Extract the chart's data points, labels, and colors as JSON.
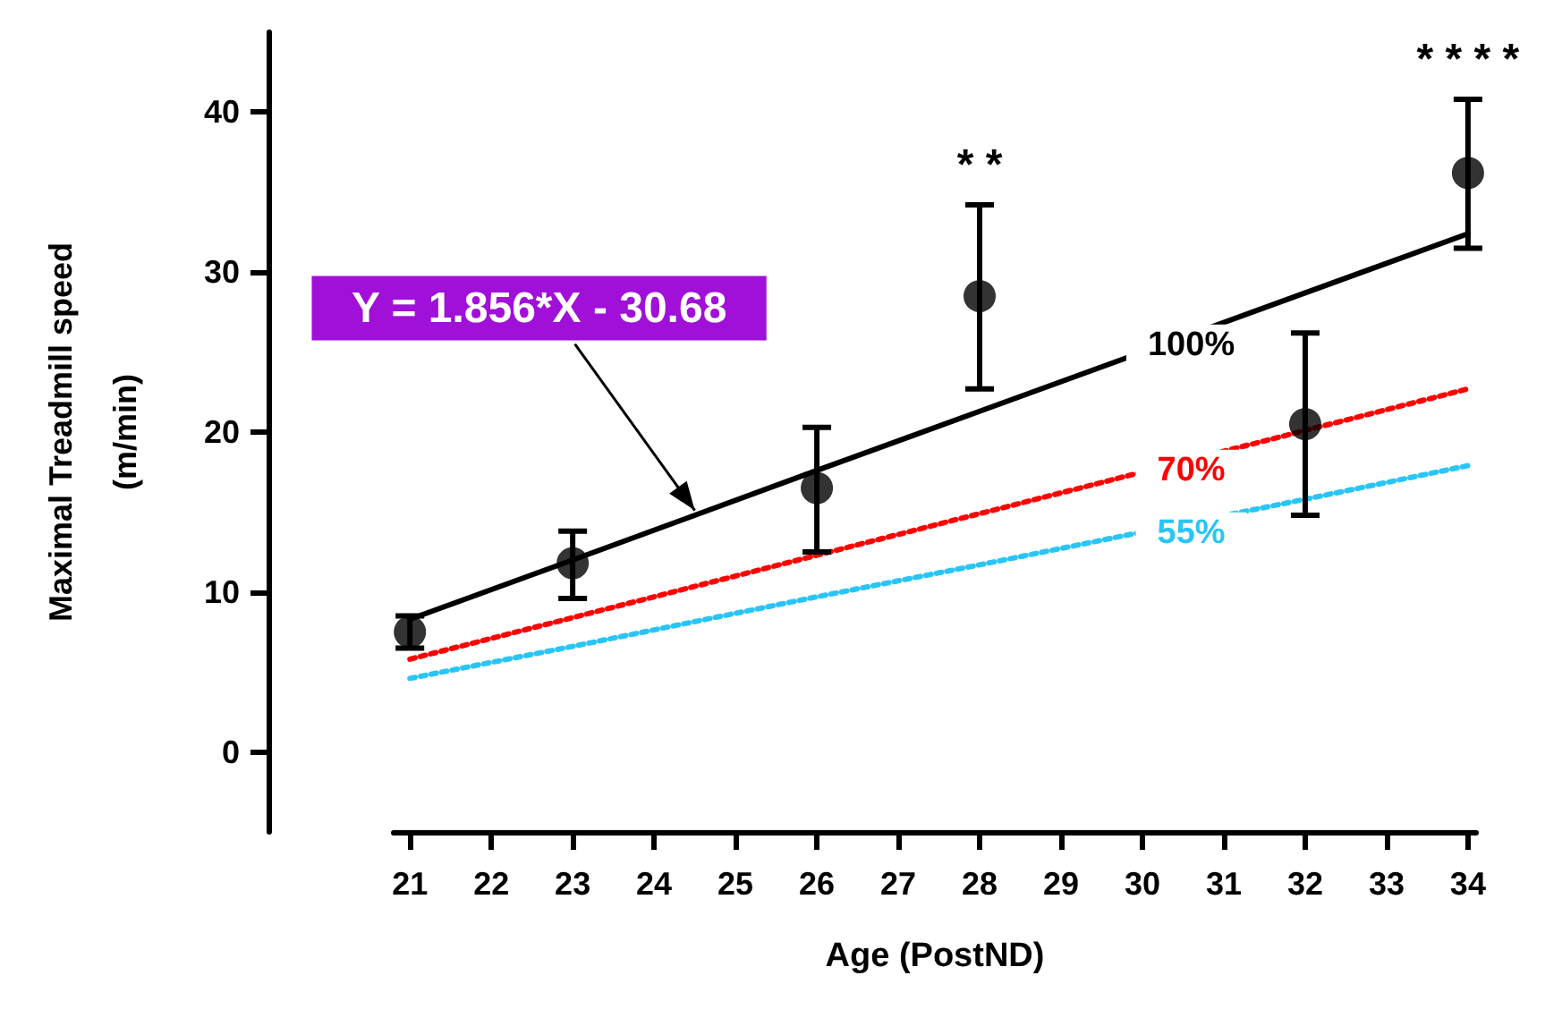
{
  "chart_data": {
    "type": "scatter",
    "xlabel": "Age (PostND)",
    "ylabel": "Maximal Treadmill speed\n(m/min)",
    "xlim": [
      20.8,
      34.1
    ],
    "xticks": [
      21,
      22,
      23,
      24,
      25,
      26,
      27,
      28,
      29,
      30,
      31,
      32,
      33,
      34
    ],
    "ylim": [
      -5,
      45
    ],
    "yticks": [
      0,
      10,
      20,
      30,
      40
    ],
    "grid": false,
    "legend": false,
    "marker": "circle",
    "x": [
      21,
      23,
      26,
      28,
      32,
      34
    ],
    "series": [
      {
        "color": "#000000",
        "values": [
          7.5,
          11.8,
          16.5,
          28.5,
          20.5,
          36.2
        ],
        "errors": [
          [
            6.5,
            8.5
          ],
          [
            9.6,
            13.8
          ],
          [
            12.5,
            20.3
          ],
          [
            22.7,
            34.2
          ],
          [
            14.8,
            26.2
          ],
          [
            31.5,
            40.8
          ]
        ]
      },
      {
        "type": "line",
        "name": "100%",
        "color": "#000000",
        "line_style": "solid",
        "marker": "none",
        "values": [
          8.3,
          12.0,
          17.6,
          21.3,
          28.7,
          32.4
        ]
      },
      {
        "type": "line",
        "name": "70%",
        "color": "#ff0000",
        "line_style": "dotted",
        "marker": "none",
        "values": [
          5.8,
          8.4,
          12.3,
          14.9,
          20.1,
          22.7
        ]
      },
      {
        "type": "line",
        "name": "55%",
        "color": "#29c5f6",
        "line_style": "dotted",
        "marker": "none",
        "values": [
          4.6,
          6.6,
          9.7,
          11.7,
          15.8,
          17.9
        ]
      }
    ],
    "annotations": [
      {
        "text": "Y = 1.856*X - 30.68",
        "x": 24.5,
        "y": 15.1
      },
      {
        "text": "* *",
        "x": 28,
        "y": 34.2
      },
      {
        "text": "* * * *",
        "x": 34,
        "y": 40.8
      }
    ]
  }
}
